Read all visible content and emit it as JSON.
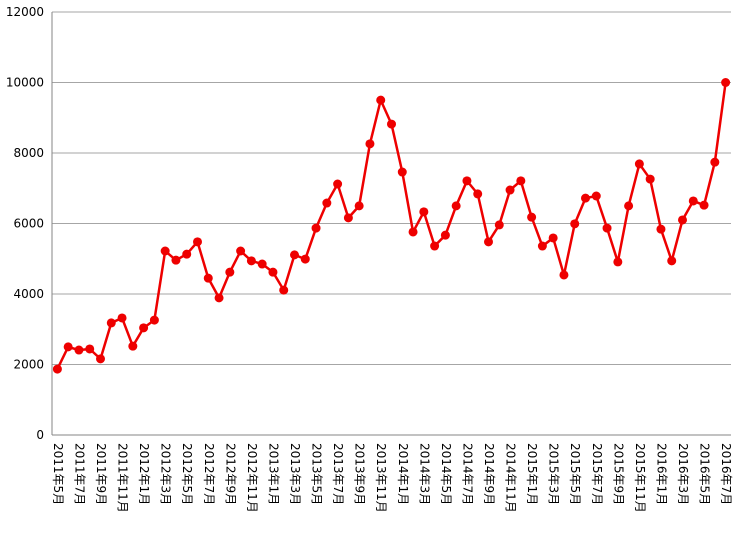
{
  "chart_data": {
    "type": "line",
    "categories": [
      "2011年5月",
      null,
      "2011年7月",
      null,
      "2011年9月",
      null,
      "2011年11月",
      null,
      "2012年1月",
      null,
      "2012年3月",
      null,
      "2012年5月",
      null,
      "2012年7月",
      null,
      "2012年9月",
      null,
      "2012年11月",
      null,
      "2013年1月",
      null,
      "2013年3月",
      null,
      "2013年5月",
      null,
      "2013年7月",
      null,
      "2013年9月",
      null,
      "2013年11月",
      null,
      "2014年1月",
      null,
      "2014年3月",
      null,
      "2014年5月",
      null,
      "2014年7月",
      null,
      "2014年9月",
      null,
      "2014年11月",
      null,
      "2015年1月",
      null,
      "2015年3月",
      null,
      "2015年5月",
      null,
      "2015年7月",
      null,
      "2015年9月",
      null,
      "2015年11月",
      null,
      "2016年1月",
      null,
      "2016年3月",
      null,
      "2016年5月",
      null,
      "2016年7月"
    ],
    "values": [
      1870,
      2500,
      2410,
      2440,
      2160,
      3180,
      3320,
      2520,
      3040,
      3260,
      5220,
      4960,
      5130,
      5480,
      4450,
      3890,
      4620,
      5220,
      4940,
      4850,
      4620,
      4110,
      5110,
      4990,
      5870,
      6580,
      7120,
      6160,
      6500,
      8260,
      9500,
      8820,
      7460,
      5760,
      6330,
      5360,
      5670,
      6500,
      7210,
      6840,
      5480,
      5960,
      6950,
      7210,
      6180,
      5360,
      5590,
      4540,
      5990,
      6720,
      6780,
      5870,
      4910,
      6500,
      7690,
      7260,
      5840,
      4940,
      6100,
      6640,
      6520,
      7740,
      10000
    ],
    "color": "#ee0000",
    "ylim": [
      0,
      12000
    ],
    "yticks": [
      0,
      2000,
      4000,
      6000,
      8000,
      10000,
      12000
    ],
    "grid": true
  }
}
